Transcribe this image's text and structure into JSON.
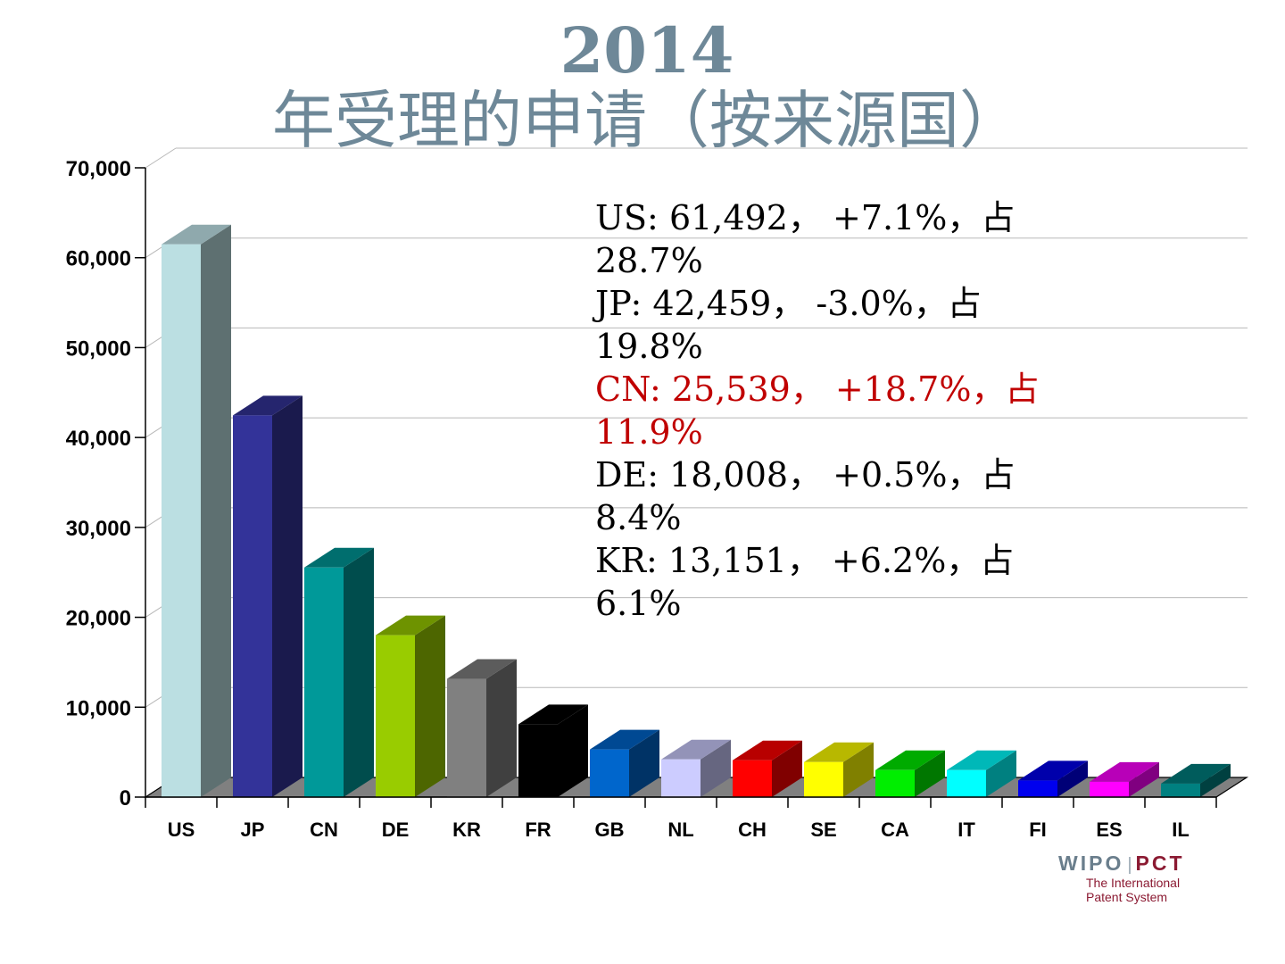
{
  "title": {
    "year": "2014",
    "text": " 年受理的申请（按来源国）"
  },
  "chart_data": {
    "type": "bar",
    "style": "3d",
    "title": "2014 年受理的申请（按来源国）",
    "categories": [
      "US",
      "JP",
      "CN",
      "DE",
      "KR",
      "FR",
      "GB",
      "NL",
      "CH",
      "SE",
      "CA",
      "IT",
      "FI",
      "ES",
      "IL"
    ],
    "values": [
      61492,
      42459,
      25539,
      18008,
      13151,
      8100,
      5300,
      4200,
      4100,
      3900,
      3000,
      3000,
      1850,
      1700,
      1500
    ],
    "colors": [
      "#bbdfe2",
      "#333399",
      "#009999",
      "#99cc00",
      "#808080",
      "#000000",
      "#0066cc",
      "#ccccff",
      "#ff0000",
      "#ffff00",
      "#00ee00",
      "#00ffff",
      "#0000ee",
      "#ff00ff",
      "#008080"
    ],
    "ylim": [
      0,
      70000
    ],
    "yticks": [
      0,
      10000,
      20000,
      30000,
      40000,
      50000,
      60000,
      70000
    ],
    "ytick_labels": [
      "0",
      "10,000",
      "20,000",
      "30,000",
      "40,000",
      "50,000",
      "60,000",
      "70,000"
    ],
    "grid": true,
    "xlabel": "",
    "ylabel": ""
  },
  "annotations": [
    {
      "line1": "US: 61,492，  +7.1%，占",
      "line2": "28.7%",
      "highlight": false
    },
    {
      "line1": "JP: 42,459，  -3.0%，占",
      "line2": "19.8%",
      "highlight": false
    },
    {
      "line1": "CN: 25,539，  +18.7%，占",
      "line2": "11.9%",
      "highlight": true
    },
    {
      "line1": "DE: 18,008，  +0.5%，占",
      "line2": "8.4%",
      "highlight": false
    },
    {
      "line1": "KR: 13,151，  +6.2%，占",
      "line2": "6.1%",
      "highlight": false
    }
  ],
  "logo": {
    "wipo": "WIPO",
    "separator": "|",
    "pct": "PCT",
    "tagline1": "The International",
    "tagline2": "Patent System"
  }
}
